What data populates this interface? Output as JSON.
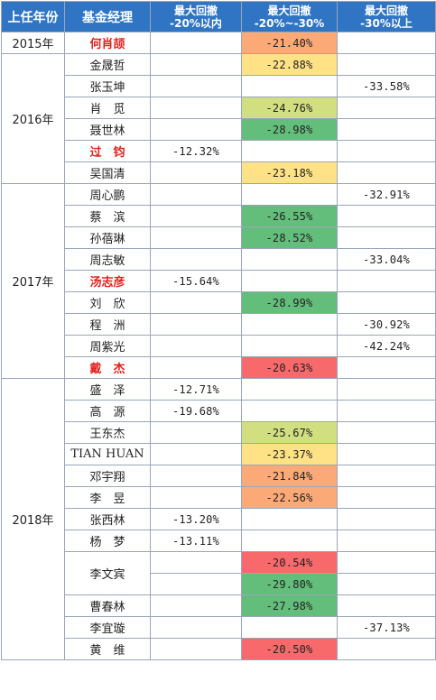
{
  "headers": {
    "year": "上任年份",
    "manager": "基金经理",
    "c1_line1": "最大回撤",
    "c1_line2": "-20%以内",
    "c2_line1": "最大回撤",
    "c2_line2": "-20%~-30%",
    "c3_line1": "最大回撤",
    "c3_line2": "-30%以上"
  },
  "colors": {
    "header_bg": "#2f75c4",
    "highlight_name": "#e0231f",
    "red": "#f8696b",
    "orange": "#fbaa77",
    "yellow": "#ffe285",
    "lime": "#d1df81",
    "green": "#63be7b"
  },
  "groups": [
    {
      "year": "2015年",
      "rows": [
        {
          "name": "何肖颉",
          "highlight": true,
          "c1": "",
          "c2": "-21.40%",
          "c2_color": "orange",
          "c3": ""
        }
      ]
    },
    {
      "year": "2016年",
      "rows": [
        {
          "name": "金晟哲",
          "highlight": false,
          "c1": "",
          "c2": "-22.88%",
          "c2_color": "yellow",
          "c3": ""
        },
        {
          "name": "张玉坤",
          "highlight": false,
          "c1": "",
          "c2": "",
          "c3": "-33.58%"
        },
        {
          "name": "肖　觅",
          "highlight": false,
          "c1": "",
          "c2": "-24.76%",
          "c2_color": "lime",
          "c3": ""
        },
        {
          "name": "聂世林",
          "highlight": false,
          "c1": "",
          "c2": "-28.98%",
          "c2_color": "green",
          "c3": ""
        },
        {
          "name": "过　钧",
          "highlight": true,
          "c1": "-12.32%",
          "c2": "",
          "c3": ""
        },
        {
          "name": "吴国清",
          "highlight": false,
          "c1": "",
          "c2": "-23.18%",
          "c2_color": "yellow",
          "c3": ""
        }
      ]
    },
    {
      "year": "2017年",
      "rows": [
        {
          "name": "周心鹏",
          "highlight": false,
          "c1": "",
          "c2": "",
          "c3": "-32.91%"
        },
        {
          "name": "蔡　滨",
          "highlight": false,
          "c1": "",
          "c2": "-26.55%",
          "c2_color": "green",
          "c3": ""
        },
        {
          "name": "孙蓓琳",
          "highlight": false,
          "c1": "",
          "c2": "-28.52%",
          "c2_color": "green",
          "c3": ""
        },
        {
          "name": "周志敏",
          "highlight": false,
          "c1": "",
          "c2": "",
          "c3": "-33.04%"
        },
        {
          "name": "汤志彦",
          "highlight": true,
          "c1": "-15.64%",
          "c2": "",
          "c3": ""
        },
        {
          "name": "刘　欣",
          "highlight": false,
          "c1": "",
          "c2": "-28.99%",
          "c2_color": "green",
          "c3": ""
        },
        {
          "name": "程　洲",
          "highlight": false,
          "c1": "",
          "c2": "",
          "c3": "-30.92%"
        },
        {
          "name": "周紫光",
          "highlight": false,
          "c1": "",
          "c2": "",
          "c3": "-42.24%"
        },
        {
          "name": "戴　杰",
          "highlight": true,
          "c1": "",
          "c2": "-20.63%",
          "c2_color": "red",
          "c3": ""
        }
      ]
    },
    {
      "year": "2018年",
      "rows": [
        {
          "name": "盛　泽",
          "highlight": false,
          "c1": "-12.71%",
          "c2": "",
          "c3": ""
        },
        {
          "name": "高　源",
          "highlight": false,
          "c1": "-19.68%",
          "c2": "",
          "c3": ""
        },
        {
          "name": "王东杰",
          "highlight": false,
          "c1": "",
          "c2": "-25.67%",
          "c2_color": "lime",
          "c3": ""
        },
        {
          "name": "TIAN HUAN",
          "highlight": false,
          "c1": "",
          "c2": "-23.37%",
          "c2_color": "yellow",
          "c3": ""
        },
        {
          "name": "邓宇翔",
          "highlight": false,
          "c1": "",
          "c2": "-21.84%",
          "c2_color": "orange",
          "c3": ""
        },
        {
          "name": "李　昱",
          "highlight": false,
          "c1": "",
          "c2": "-22.56%",
          "c2_color": "orange",
          "c3": ""
        },
        {
          "name": "张西林",
          "highlight": false,
          "c1": "-13.20%",
          "c2": "",
          "c3": ""
        },
        {
          "name": "杨　梦",
          "highlight": false,
          "c1": "-13.11%",
          "c2": "",
          "c3": ""
        },
        {
          "name": "李文宾",
          "highlight": false,
          "c1": "",
          "c2": "-20.54%",
          "c2_color": "red",
          "c3": "",
          "name_rowspan": 2
        },
        {
          "name": "",
          "highlight": false,
          "c1": "",
          "c2": "-29.80%",
          "c2_color": "green",
          "c3": "",
          "merged_name": true
        },
        {
          "name": "曹春林",
          "highlight": false,
          "c1": "",
          "c2": "-27.98%",
          "c2_color": "green",
          "c3": ""
        },
        {
          "name": "李宜璇",
          "highlight": false,
          "c1": "",
          "c2": "",
          "c3": "-37.13%"
        },
        {
          "name": "黄　维",
          "highlight": false,
          "c1": "",
          "c2": "-20.50%",
          "c2_color": "red",
          "c3": ""
        }
      ]
    }
  ]
}
